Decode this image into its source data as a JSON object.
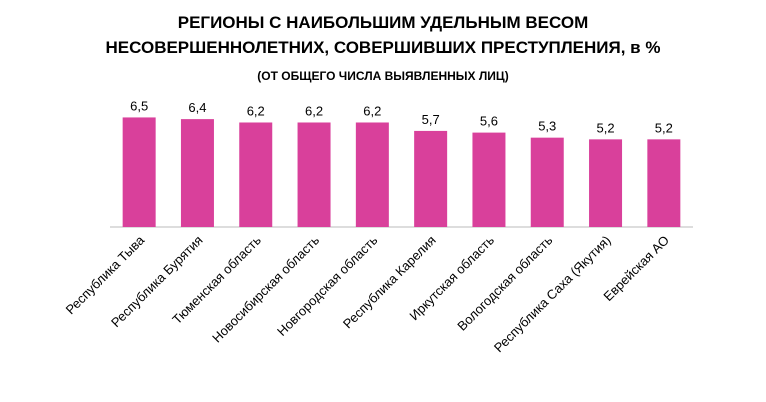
{
  "chart_data": {
    "type": "bar",
    "title": [
      "РЕГИОНЫ С НАИБОЛЬШИМ УДЕЛЬНЫМ ВЕСОМ",
      "НЕСОВЕРШЕННОЛЕТНИХ, СОВЕРШИВШИХ ПРЕСТУПЛЕНИЯ, в %"
    ],
    "subtitle": "(ОТ ОБЩЕГО ЧИСЛА ВЫЯВЛЕННЫХ ЛИЦ)",
    "categories": [
      "Республика Тыва",
      "Республика Бурятия",
      "Тюменская область",
      "Новосибирская область",
      "Новгородская область",
      "Республика Карелия",
      "Иркутская область",
      "Вологодская область",
      "Республика Саха (Якутия)",
      "Еврейская АО"
    ],
    "values": [
      6.5,
      6.4,
      6.2,
      6.2,
      6.2,
      5.7,
      5.6,
      5.3,
      5.2,
      5.2
    ],
    "value_labels": [
      "6,5",
      "6,4",
      "6,2",
      "6,2",
      "6,2",
      "5,7",
      "5,6",
      "5,3",
      "5,2",
      "5,2"
    ],
    "color": "#d9409b",
    "ylim": [
      0,
      7
    ]
  }
}
